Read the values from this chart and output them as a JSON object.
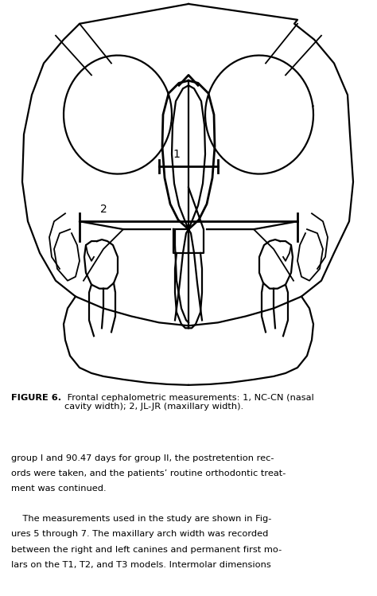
{
  "background_color": "#ffffff",
  "figure_caption_bold": "FIGURE 6.",
  "figure_caption_normal": " Frontal cephalometric measurements: 1, NC-CN (nasal\ncavity width); 2, JL-JR (maxillary width).",
  "body_text_line1": "group I and 90.47 days for group II, the postretention rec-",
  "body_text_line2": "ords were taken, and the patients’ routine orthodontic treat-",
  "body_text_line3": "ment was continued.",
  "body_text_line4": "    The measurements used in the study are shown in Fig-",
  "body_text_line5": "ures 5 through 7. The maxillary arch width was recorded",
  "body_text_line6": "between the right and left canines and permanent first mo-",
  "body_text_line7": "lars on the T1, T2, and T3 models. Intermolar dimensions",
  "label1": "1",
  "label2": "2",
  "line_color": "#000000",
  "text_color": "#000000",
  "caption_fontsize": 8.2,
  "body_fontsize": 8.2,
  "label_fontsize": 10
}
